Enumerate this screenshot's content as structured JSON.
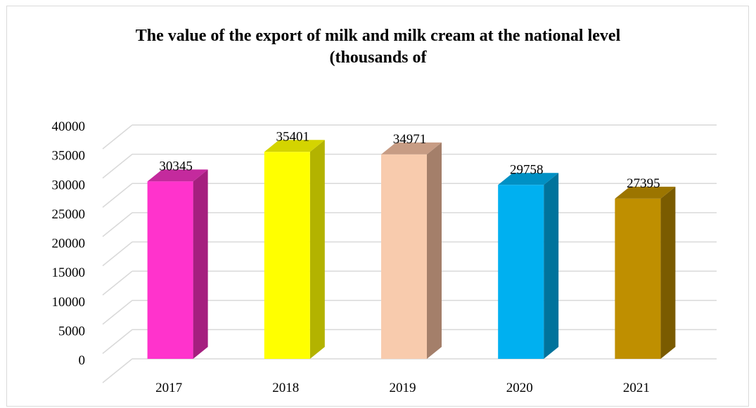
{
  "chart_data": {
    "type": "bar",
    "title_lines": [
      "The value of the export of milk and milk cream at the national level",
      "(thousands of"
    ],
    "categories": [
      "2017",
      "2018",
      "2019",
      "2020",
      "2021"
    ],
    "values": [
      30345,
      35401,
      34971,
      29758,
      27395
    ],
    "data_labels": [
      "30345",
      "35401",
      "34971",
      "29758",
      "27395"
    ],
    "ylim": [
      0,
      40000
    ],
    "yticks": [
      "0",
      "5000",
      "10000",
      "15000",
      "20000",
      "25000",
      "30000",
      "35000",
      "40000"
    ],
    "grid": true,
    "legend": "none",
    "style": "3d-column",
    "colors": [
      {
        "front": "#ff33cc",
        "side": "#a51f7f",
        "top": "#c42a9d"
      },
      {
        "front": "#ffff00",
        "side": "#b3b300",
        "top": "#d4d400"
      },
      {
        "front": "#f8cbad",
        "side": "#a47f6a",
        "top": "#c79c84"
      },
      {
        "front": "#00b0f0",
        "side": "#00739c",
        "top": "#0090c4"
      },
      {
        "front": "#bf8f00",
        "side": "#7a5b00",
        "top": "#9c7500"
      }
    ],
    "grid_color": "#d9d9d9"
  }
}
